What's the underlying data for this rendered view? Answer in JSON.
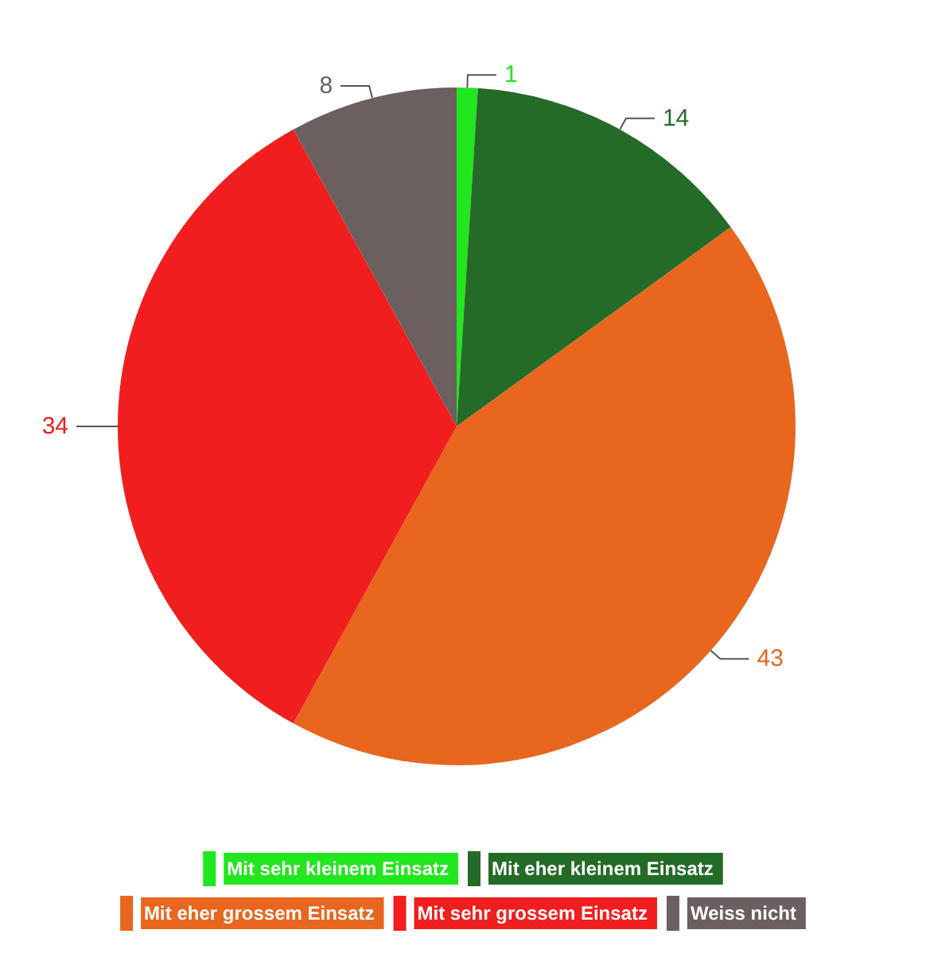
{
  "chart_data": {
    "type": "pie",
    "categories": [
      "Mit sehr kleinem Einsatz",
      "Mit eher kleinem Einsatz",
      "Mit eher grossem Einsatz",
      "Mit sehr grossem Einsatz",
      "Weiss nicht"
    ],
    "values": [
      1,
      14,
      43,
      34,
      8
    ],
    "colors": [
      "#22e61e",
      "#256b28",
      "#e8661e",
      "#f01e1e",
      "#6b5f5f"
    ],
    "data_labels": true,
    "legend": "bottom"
  }
}
